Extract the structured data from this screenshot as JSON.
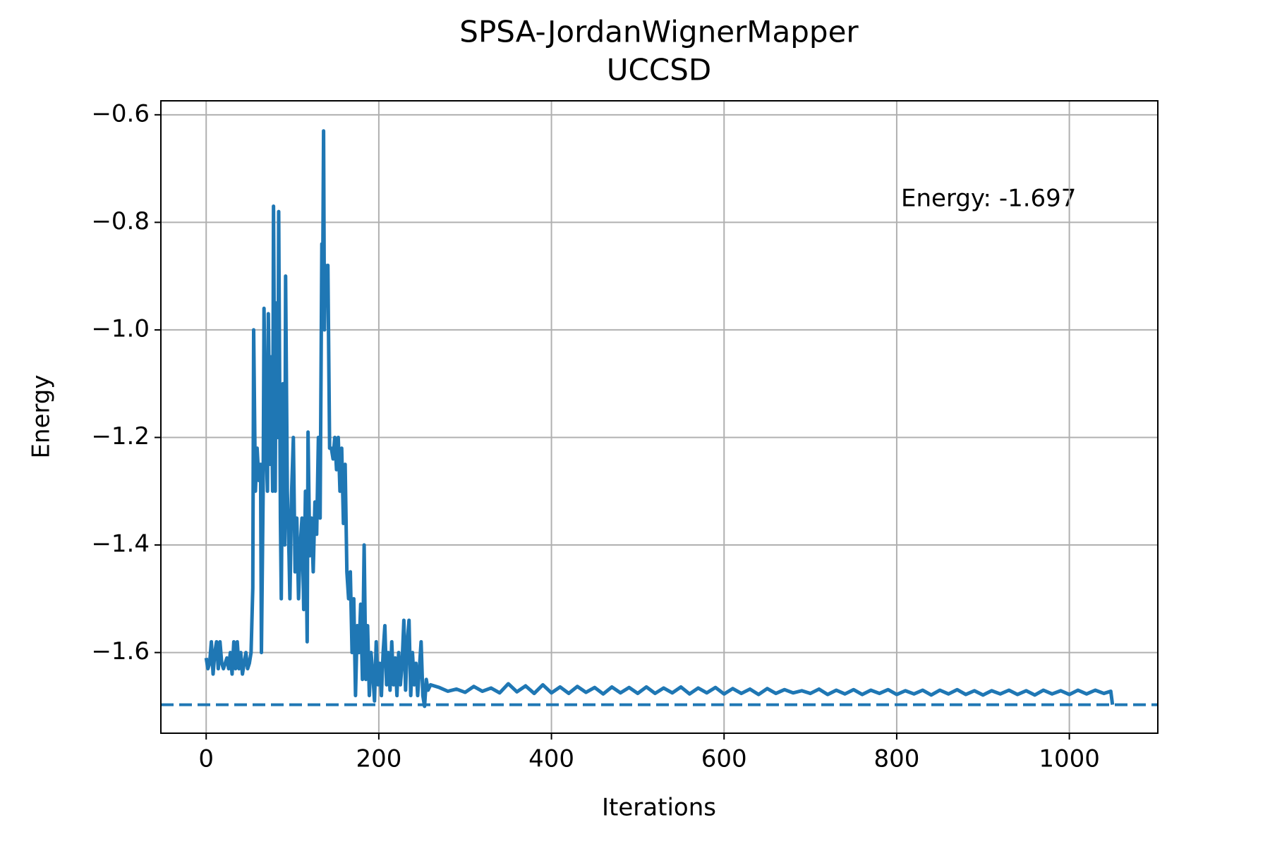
{
  "chart_data": {
    "type": "line",
    "title": "SPSA-JordanWignerMapper",
    "subtitle": "UCCSD",
    "x_label": "Iterations",
    "y_label": "Energy",
    "annotation": "Energy: -1.697",
    "color": "#1f77b4",
    "grid": true,
    "xlim": [
      -52.5,
      1102.5
    ],
    "ylim": [
      -1.75,
      -0.574
    ],
    "xticks": [
      0,
      200,
      400,
      600,
      800,
      1000
    ],
    "yticks": [
      {
        "value": -1.6,
        "label": "−1.6"
      },
      {
        "value": -1.4,
        "label": "−1.4"
      },
      {
        "value": -1.2,
        "label": "−1.2"
      },
      {
        "value": -1.0,
        "label": "−1.0"
      },
      {
        "value": -0.8,
        "label": "−0.8"
      },
      {
        "value": -0.6,
        "label": "−0.6"
      }
    ],
    "hline": {
      "value": -1.697,
      "style": "dashed",
      "color": "#1f77b4"
    },
    "x": [
      0,
      2,
      4,
      6,
      8,
      10,
      12,
      14,
      16,
      18,
      20,
      22,
      24,
      26,
      28,
      30,
      32,
      34,
      36,
      38,
      40,
      42,
      44,
      46,
      48,
      50,
      52,
      54,
      55,
      57,
      59,
      61,
      63,
      64,
      66,
      67,
      69,
      71,
      72,
      74,
      75,
      77,
      78,
      80,
      81,
      83,
      84,
      86,
      87,
      89,
      91,
      92,
      94,
      96,
      97,
      99,
      101,
      103,
      105,
      107,
      109,
      111,
      113,
      115,
      117,
      118,
      120,
      122,
      124,
      126,
      128,
      130,
      132,
      134,
      135,
      136,
      137,
      138,
      140,
      141,
      143,
      145,
      147,
      149,
      151,
      153,
      155,
      157,
      159,
      161,
      163,
      165,
      167,
      169,
      171,
      173,
      175,
      177,
      179,
      181,
      183,
      185,
      187,
      189,
      191,
      193,
      195,
      197,
      199,
      201,
      203,
      205,
      207,
      209,
      211,
      213,
      215,
      217,
      219,
      221,
      223,
      225,
      227,
      229,
      231,
      233,
      235,
      237,
      239,
      241,
      243,
      245,
      247,
      249,
      251,
      253,
      255,
      257,
      260,
      270,
      280,
      290,
      300,
      310,
      320,
      330,
      340,
      350,
      360,
      370,
      380,
      390,
      400,
      410,
      420,
      430,
      440,
      450,
      460,
      470,
      480,
      490,
      500,
      510,
      520,
      530,
      540,
      550,
      560,
      570,
      580,
      590,
      600,
      610,
      620,
      630,
      640,
      650,
      660,
      670,
      680,
      690,
      700,
      710,
      720,
      730,
      740,
      750,
      760,
      770,
      780,
      790,
      800,
      810,
      820,
      830,
      840,
      850,
      860,
      870,
      880,
      890,
      900,
      910,
      920,
      930,
      940,
      950,
      960,
      970,
      980,
      990,
      1000,
      1010,
      1020,
      1030,
      1040,
      1048,
      1050
    ],
    "values": [
      -1.61,
      -1.63,
      -1.62,
      -1.58,
      -1.64,
      -1.6,
      -1.58,
      -1.63,
      -1.58,
      -1.62,
      -1.63,
      -1.62,
      -1.61,
      -1.63,
      -1.6,
      -1.64,
      -1.58,
      -1.63,
      -1.58,
      -1.63,
      -1.6,
      -1.64,
      -1.62,
      -1.6,
      -1.63,
      -1.62,
      -1.6,
      -1.48,
      -1.0,
      -1.3,
      -1.22,
      -1.28,
      -1.25,
      -1.6,
      -1.3,
      -0.96,
      -1.2,
      -1.3,
      -0.97,
      -1.25,
      -1.05,
      -1.3,
      -0.77,
      -1.3,
      -0.95,
      -1.2,
      -0.78,
      -1.35,
      -1.5,
      -1.1,
      -1.4,
      -0.9,
      -1.3,
      -1.42,
      -1.5,
      -1.3,
      -1.2,
      -1.45,
      -1.35,
      -1.5,
      -1.4,
      -1.35,
      -1.52,
      -1.3,
      -1.58,
      -1.19,
      -1.42,
      -1.35,
      -1.45,
      -1.32,
      -1.38,
      -1.2,
      -1.35,
      -0.84,
      -0.9,
      -0.63,
      -1.0,
      -0.88,
      -0.95,
      -0.88,
      -1.22,
      -1.22,
      -1.24,
      -1.2,
      -1.26,
      -1.2,
      -1.3,
      -1.22,
      -1.36,
      -1.25,
      -1.45,
      -1.5,
      -1.45,
      -1.6,
      -1.5,
      -1.68,
      -1.55,
      -1.6,
      -1.51,
      -1.65,
      -1.4,
      -1.65,
      -1.55,
      -1.68,
      -1.6,
      -1.64,
      -1.69,
      -1.58,
      -1.66,
      -1.62,
      -1.68,
      -1.6,
      -1.55,
      -1.66,
      -1.6,
      -1.67,
      -1.58,
      -1.66,
      -1.61,
      -1.68,
      -1.6,
      -1.66,
      -1.62,
      -1.54,
      -1.67,
      -1.58,
      -1.54,
      -1.68,
      -1.6,
      -1.66,
      -1.62,
      -1.68,
      -1.63,
      -1.58,
      -1.68,
      -1.7,
      -1.65,
      -1.67,
      -1.66,
      -1.665,
      -1.672,
      -1.668,
      -1.674,
      -1.663,
      -1.672,
      -1.666,
      -1.675,
      -1.658,
      -1.673,
      -1.662,
      -1.676,
      -1.66,
      -1.675,
      -1.664,
      -1.676,
      -1.663,
      -1.674,
      -1.665,
      -1.677,
      -1.664,
      -1.675,
      -1.665,
      -1.676,
      -1.664,
      -1.676,
      -1.666,
      -1.675,
      -1.664,
      -1.677,
      -1.666,
      -1.675,
      -1.665,
      -1.677,
      -1.667,
      -1.676,
      -1.668,
      -1.678,
      -1.667,
      -1.676,
      -1.669,
      -1.675,
      -1.671,
      -1.676,
      -1.668,
      -1.678,
      -1.67,
      -1.677,
      -1.669,
      -1.678,
      -1.67,
      -1.676,
      -1.669,
      -1.678,
      -1.671,
      -1.677,
      -1.67,
      -1.679,
      -1.67,
      -1.677,
      -1.669,
      -1.678,
      -1.671,
      -1.679,
      -1.671,
      -1.677,
      -1.67,
      -1.678,
      -1.671,
      -1.679,
      -1.67,
      -1.677,
      -1.671,
      -1.678,
      -1.67,
      -1.677,
      -1.67,
      -1.676,
      -1.672,
      -1.697
    ]
  }
}
